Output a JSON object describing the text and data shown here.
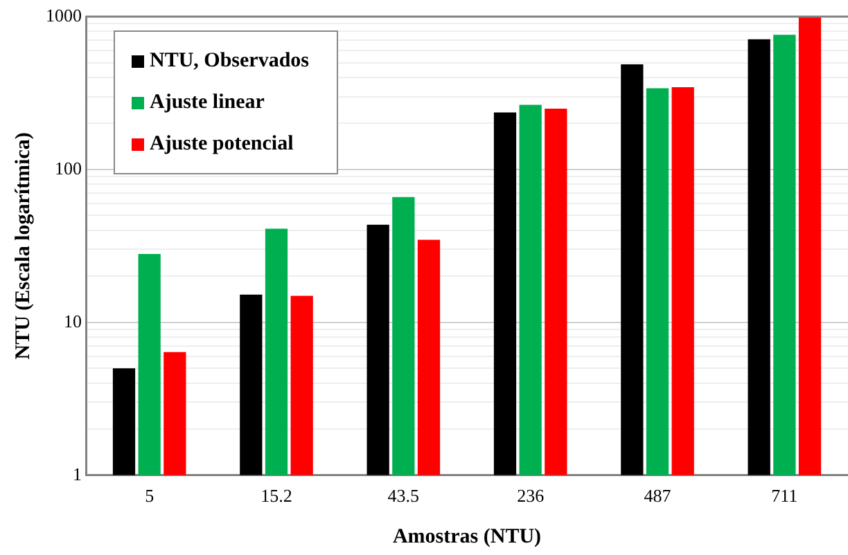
{
  "chart_data": {
    "type": "bar",
    "xlabel": "Amostras (NTU)",
    "ylabel": "NTU (Escala logarítmica)",
    "categories": [
      "5",
      "15.2",
      "43.5",
      "236",
      "487",
      "711"
    ],
    "series": [
      {
        "name": "NTU, Observados",
        "color": "#000000",
        "values": [
          5,
          15.2,
          43.5,
          236,
          487,
          711
        ]
      },
      {
        "name": "Ajuste linear",
        "color": "#00b050",
        "values": [
          28,
          41,
          66,
          265,
          340,
          760
        ]
      },
      {
        "name": "Ajuste potencial",
        "color": "#ff0000",
        "values": [
          6.4,
          14.9,
          34.7,
          250,
          345,
          1000
        ]
      }
    ],
    "log": "y",
    "ylim": [
      1,
      1000
    ],
    "yticks": [
      1,
      {
        "value": 2,
        "label": null
      },
      {
        "value": 3,
        "label": null
      },
      {
        "value": 4,
        "label": null
      },
      {
        "value": 5,
        "label": null
      },
      {
        "value": 6,
        "label": null
      },
      {
        "value": 7,
        "label": null
      },
      {
        "value": 8,
        "label": null
      },
      {
        "value": 9,
        "label": null
      },
      10,
      {
        "value": 20,
        "label": null
      },
      {
        "value": 30,
        "label": null
      },
      {
        "value": 40,
        "label": null
      },
      {
        "value": 50,
        "label": null
      },
      {
        "value": 60,
        "label": null
      },
      {
        "value": 70,
        "label": null
      },
      {
        "value": 80,
        "label": null
      },
      {
        "value": 90,
        "label": null
      },
      100,
      {
        "value": 200,
        "label": null
      },
      {
        "value": 300,
        "label": null
      },
      {
        "value": 400,
        "label": null
      },
      {
        "value": 500,
        "label": null
      },
      {
        "value": 600,
        "label": null
      },
      {
        "value": 700,
        "label": null
      },
      {
        "value": 800,
        "label": null
      },
      {
        "value": 900,
        "label": null
      },
      1000
    ],
    "grid": "y",
    "legend": "top left"
  }
}
